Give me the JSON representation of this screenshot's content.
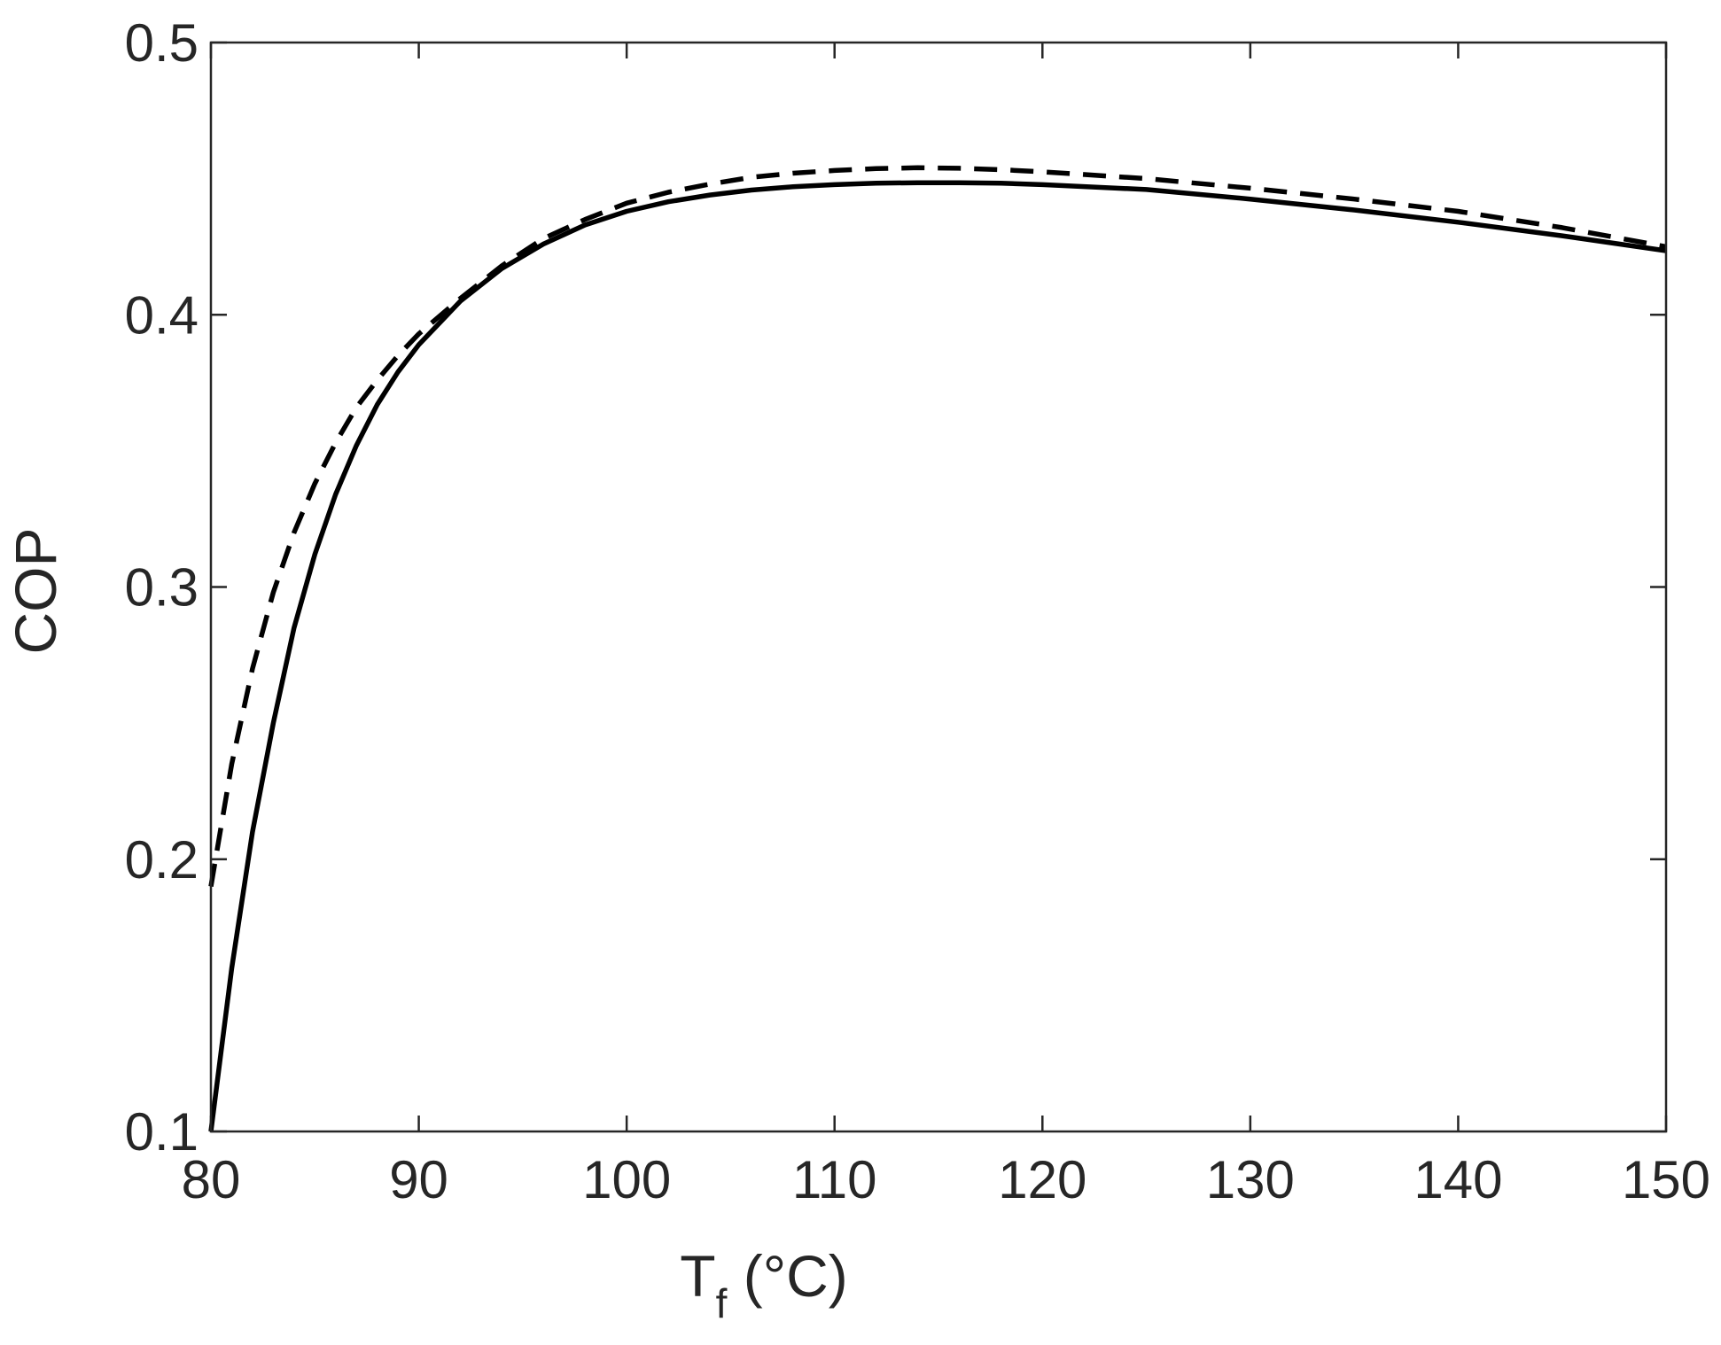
{
  "chart_data": {
    "type": "line",
    "title": "",
    "xlabel": {
      "main": "T",
      "subscript": "f",
      "unit": " (°C)"
    },
    "ylabel": "COP",
    "xlim": [
      80,
      150
    ],
    "ylim": [
      0.1,
      0.5
    ],
    "xticks": [
      80,
      90,
      100,
      110,
      120,
      130,
      140,
      150
    ],
    "yticks": [
      0.1,
      0.2,
      0.3,
      0.4,
      0.5
    ],
    "grid": false,
    "legend": "none",
    "colors": {
      "line": "#000000",
      "axis": "#262626"
    },
    "series": [
      {
        "style": "solid",
        "x": [
          80,
          81,
          82,
          83,
          84,
          85,
          86,
          87,
          88,
          89,
          90,
          92,
          94,
          96,
          98,
          100,
          102,
          104,
          106,
          108,
          110,
          112,
          114,
          116,
          118,
          120,
          125,
          130,
          135,
          140,
          145,
          150
        ],
        "y": [
          0.1,
          0.16,
          0.21,
          0.25,
          0.285,
          0.312,
          0.334,
          0.352,
          0.367,
          0.379,
          0.389,
          0.405,
          0.417,
          0.426,
          0.433,
          0.438,
          0.4415,
          0.444,
          0.4458,
          0.447,
          0.4478,
          0.4483,
          0.4485,
          0.4485,
          0.4483,
          0.4478,
          0.446,
          0.4425,
          0.4385,
          0.434,
          0.429,
          0.4235
        ]
      },
      {
        "style": "dashed",
        "x": [
          80,
          81,
          82,
          83,
          84,
          85,
          86,
          87,
          88,
          89,
          90,
          92,
          94,
          96,
          98,
          100,
          102,
          104,
          106,
          108,
          110,
          112,
          114,
          116,
          118,
          120,
          125,
          130,
          135,
          140,
          145,
          150
        ],
        "y": [
          0.19,
          0.235,
          0.27,
          0.298,
          0.32,
          0.338,
          0.353,
          0.366,
          0.376,
          0.385,
          0.393,
          0.406,
          0.418,
          0.428,
          0.435,
          0.441,
          0.445,
          0.448,
          0.4505,
          0.452,
          0.453,
          0.4537,
          0.454,
          0.4538,
          0.4533,
          0.4525,
          0.45,
          0.4465,
          0.4425,
          0.438,
          0.432,
          0.425
        ]
      }
    ]
  }
}
